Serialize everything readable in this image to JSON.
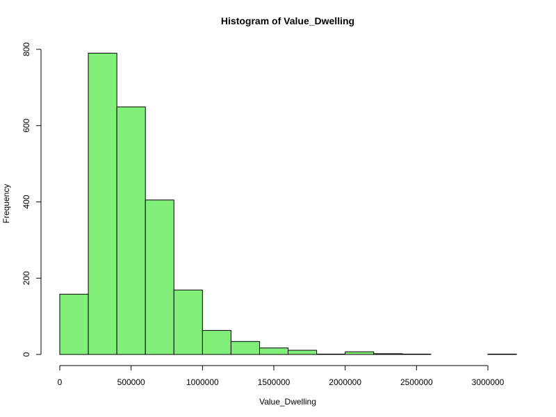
{
  "chart_data": {
    "type": "bar",
    "title": "Histogram of Value_Dwelling",
    "xlabel": "Value_Dwelling",
    "ylabel": "Frequency",
    "bin_width": 200000,
    "bins": [
      {
        "start": 0,
        "end": 200000,
        "count": 158
      },
      {
        "start": 200000,
        "end": 400000,
        "count": 790
      },
      {
        "start": 400000,
        "end": 600000,
        "count": 649
      },
      {
        "start": 600000,
        "end": 800000,
        "count": 405
      },
      {
        "start": 800000,
        "end": 1000000,
        "count": 169
      },
      {
        "start": 1000000,
        "end": 1200000,
        "count": 63
      },
      {
        "start": 1200000,
        "end": 1400000,
        "count": 34
      },
      {
        "start": 1400000,
        "end": 1600000,
        "count": 17
      },
      {
        "start": 1600000,
        "end": 1800000,
        "count": 11
      },
      {
        "start": 1800000,
        "end": 2000000,
        "count": 1
      },
      {
        "start": 2000000,
        "end": 2200000,
        "count": 7
      },
      {
        "start": 2200000,
        "end": 2400000,
        "count": 2
      },
      {
        "start": 2400000,
        "end": 2600000,
        "count": 1
      },
      {
        "start": 2600000,
        "end": 2800000,
        "count": 0
      },
      {
        "start": 2800000,
        "end": 3000000,
        "count": 0
      },
      {
        "start": 3000000,
        "end": 3200000,
        "count": 1
      }
    ],
    "xlim": [
      0,
      3200000
    ],
    "ylim": [
      0,
      800
    ],
    "x_ticks": [
      0,
      500000,
      1000000,
      1500000,
      2000000,
      2500000,
      3000000
    ],
    "x_tick_labels": [
      "0",
      "500000",
      "1000000",
      "1500000",
      "2000000",
      "2500000",
      "3000000"
    ],
    "y_ticks": [
      0,
      200,
      400,
      600,
      800
    ],
    "y_tick_labels": [
      "0",
      "200",
      "400",
      "600",
      "800"
    ],
    "grid": false,
    "bar_color": "#83ef7b",
    "edge_color": "#000000"
  }
}
